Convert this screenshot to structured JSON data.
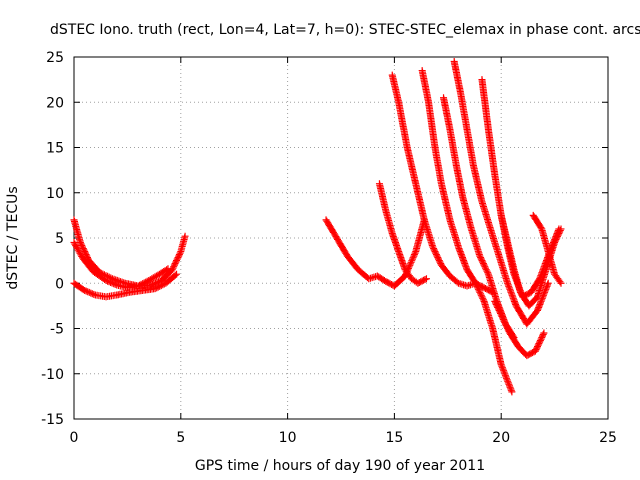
{
  "chart_data": {
    "type": "scatter",
    "title": "dSTEC Iono. truth (rect, Lon=4, Lat=7, h=0): STEC-STEC_elemax in phase cont. arcs",
    "xlabel": "GPS time / hours of day 190 of year 2011",
    "ylabel": "dSTEC  / TECUs",
    "xlim": [
      0,
      25
    ],
    "ylim": [
      -15,
      25
    ],
    "x_ticks": [
      "0",
      "5",
      "10",
      "15",
      "20",
      "25"
    ],
    "y_ticks": [
      "25",
      "20",
      "15",
      "10",
      "5",
      "0",
      "-5",
      "-10",
      "-15"
    ],
    "grid": true,
    "marker": "+",
    "color": "#ff0000",
    "series": [
      {
        "x": [
          0.0,
          0.3,
          0.7,
          1.2,
          1.8,
          2.4,
          3.0,
          3.6,
          4.1,
          4.6,
          5.0,
          5.2
        ],
        "y": [
          7.0,
          4.5,
          2.5,
          1.2,
          0.5,
          0.0,
          -0.3,
          -0.2,
          0.3,
          1.5,
          3.5,
          5.2
        ]
      },
      {
        "x": [
          0.0,
          0.4,
          0.9,
          1.5,
          2.0,
          2.5,
          3.0,
          3.5,
          4.0,
          4.4
        ],
        "y": [
          4.5,
          2.8,
          1.3,
          0.3,
          -0.2,
          -0.5,
          -0.3,
          0.3,
          1.0,
          1.6
        ]
      },
      {
        "x": [
          0.0,
          0.5,
          1.0,
          1.5,
          2.0,
          2.6,
          3.2,
          3.8,
          4.3,
          4.8
        ],
        "y": [
          0.0,
          -0.8,
          -1.3,
          -1.5,
          -1.3,
          -1.0,
          -0.8,
          -0.6,
          0.0,
          1.0
        ]
      },
      {
        "x": [
          11.8,
          12.3,
          12.8,
          13.3,
          13.8,
          14.2,
          14.6,
          15.0,
          15.5,
          16.0,
          16.4
        ],
        "y": [
          7.0,
          5.0,
          3.0,
          1.5,
          0.5,
          0.8,
          0.2,
          -0.3,
          0.8,
          3.5,
          7.0
        ]
      },
      {
        "x": [
          14.3,
          14.6,
          14.9,
          15.2,
          15.5,
          15.8,
          16.1,
          16.5
        ],
        "y": [
          11.0,
          8.0,
          5.5,
          3.5,
          1.5,
          0.5,
          0.0,
          0.5
        ]
      },
      {
        "x": [
          14.9,
          15.2,
          15.6,
          16.0,
          16.4,
          16.8,
          17.2,
          17.6,
          18.0,
          18.4,
          18.8,
          19.2,
          19.6
        ],
        "y": [
          23.0,
          20.0,
          15.0,
          11.0,
          7.0,
          4.0,
          2.0,
          0.8,
          0.0,
          -0.3,
          0.0,
          -0.5,
          -1.0
        ]
      },
      {
        "x": [
          16.3,
          16.6,
          16.9,
          17.2,
          17.6,
          18.0,
          18.4,
          18.8,
          19.2,
          19.6,
          20.0,
          20.5
        ],
        "y": [
          23.5,
          20.0,
          15.0,
          11.0,
          7.0,
          4.0,
          1.5,
          0.0,
          -2.0,
          -5.0,
          -9.0,
          -12.0
        ]
      },
      {
        "x": [
          17.3,
          17.6,
          17.9,
          18.2,
          18.6,
          19.0,
          19.4,
          19.8,
          20.2,
          20.6
        ],
        "y": [
          20.5,
          17.0,
          13.0,
          9.5,
          6.0,
          3.0,
          1.0,
          -2.0,
          -4.5,
          -6.0
        ]
      },
      {
        "x": [
          17.8,
          18.1,
          18.4,
          18.7,
          19.1,
          19.5,
          19.9,
          20.3,
          20.7,
          21.2,
          21.7,
          22.2
        ],
        "y": [
          24.5,
          21.0,
          17.0,
          13.0,
          9.0,
          6.0,
          3.0,
          0.0,
          -2.5,
          -4.5,
          -3.0,
          0.0
        ]
      },
      {
        "x": [
          19.1,
          19.4,
          19.7,
          20.0,
          20.3,
          20.6,
          21.0,
          21.4,
          21.8,
          22.2,
          22.7
        ],
        "y": [
          22.5,
          17.0,
          12.0,
          7.5,
          4.0,
          1.0,
          -1.5,
          -1.0,
          0.5,
          3.0,
          6.0
        ]
      },
      {
        "x": [
          20.0,
          20.3,
          20.6,
          20.9,
          21.3,
          21.7,
          22.1,
          22.5,
          22.8
        ],
        "y": [
          7.5,
          4.5,
          1.5,
          -1.0,
          -2.5,
          -1.5,
          1.5,
          4.5,
          6.0
        ]
      },
      {
        "x": [
          19.7,
          20.0,
          20.4,
          20.8,
          21.2,
          21.6,
          22.0
        ],
        "y": [
          -2.0,
          -3.5,
          -5.5,
          -7.0,
          -8.0,
          -7.5,
          -5.5
        ]
      },
      {
        "x": [
          21.5,
          21.9,
          22.2,
          22.5,
          22.8
        ],
        "y": [
          7.5,
          6.0,
          3.5,
          1.0,
          0.0
        ]
      }
    ]
  }
}
